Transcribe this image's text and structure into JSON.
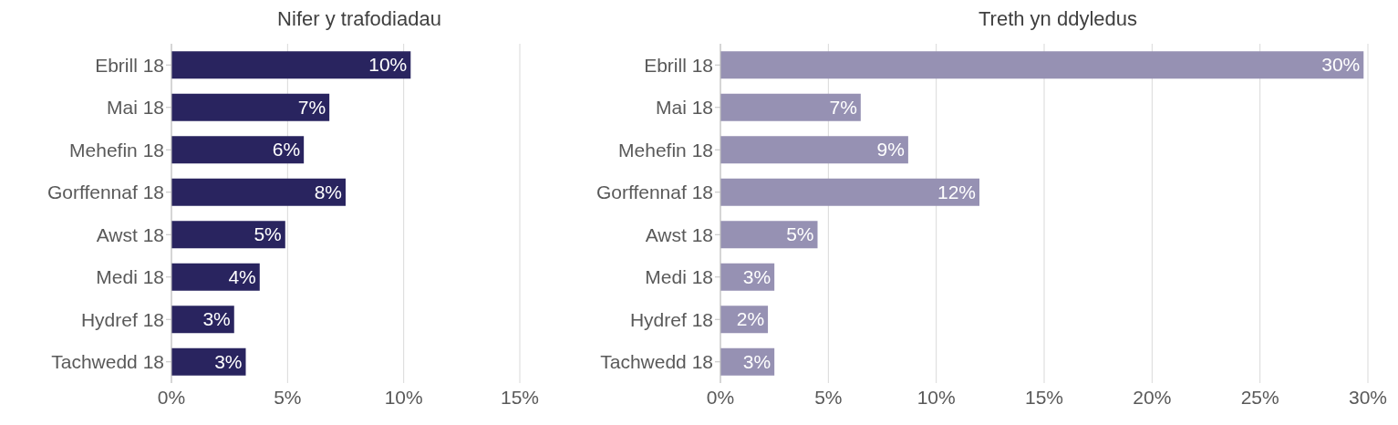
{
  "chart_data": [
    {
      "type": "bar",
      "orientation": "horizontal",
      "title": "Nifer y trafodiadau",
      "categories": [
        "Ebrill 18",
        "Mai 18",
        "Mehefin 18",
        "Gorffennaf 18",
        "Awst 18",
        "Medi 18",
        "Hydref 18",
        "Tachwedd 18"
      ],
      "series": [
        {
          "color": "#29245f",
          "values": [
            10.3,
            6.8,
            5.7,
            7.5,
            4.9,
            3.8,
            2.7,
            3.2
          ],
          "value_labels": [
            "10%",
            "7%",
            "6%",
            "8%",
            "5%",
            "4%",
            "3%",
            "3%"
          ]
        }
      ],
      "xlim": [
        0,
        15
      ],
      "xticks": [
        {
          "value": 0,
          "label": "0%"
        },
        {
          "value": 5,
          "label": "5%"
        },
        {
          "value": 10,
          "label": "10%"
        },
        {
          "value": 15,
          "label": "15%"
        }
      ],
      "grid": "x"
    },
    {
      "type": "bar",
      "orientation": "horizontal",
      "title": "Treth yn ddyledus",
      "categories": [
        "Ebrill 18",
        "Mai 18",
        "Mehefin 18",
        "Gorffennaf 18",
        "Awst 18",
        "Medi 18",
        "Hydref 18",
        "Tachwedd 18"
      ],
      "series": [
        {
          "color": "#9691b3",
          "values": [
            29.8,
            6.5,
            8.7,
            12.0,
            4.5,
            2.5,
            2.2,
            2.5
          ],
          "value_labels": [
            "30%",
            "7%",
            "9%",
            "12%",
            "5%",
            "3%",
            "2%",
            "3%"
          ]
        }
      ],
      "xlim": [
        0,
        30
      ],
      "xticks": [
        {
          "value": 0,
          "label": "0%"
        },
        {
          "value": 5,
          "label": "5%"
        },
        {
          "value": 10,
          "label": "10%"
        },
        {
          "value": 15,
          "label": "15%"
        },
        {
          "value": 20,
          "label": "20%"
        },
        {
          "value": 25,
          "label": "25%"
        },
        {
          "value": 30,
          "label": "30%"
        }
      ],
      "grid": "x"
    }
  ]
}
